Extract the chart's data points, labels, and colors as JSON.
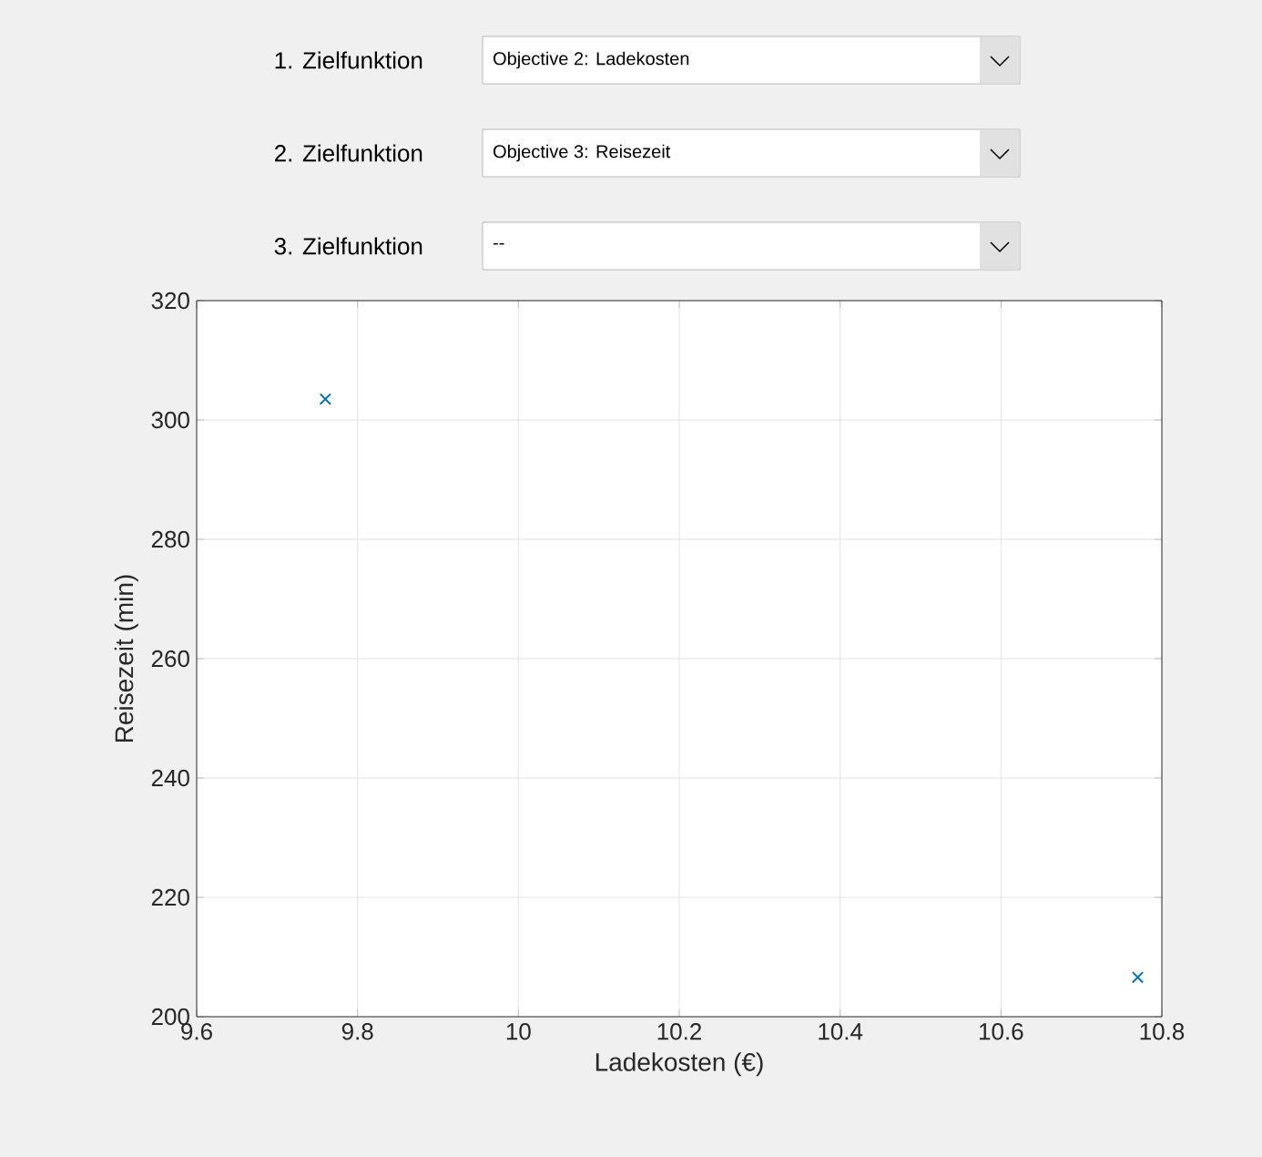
{
  "chart_data": {
    "type": "scatter",
    "xlabel": "Ladekosten (€)",
    "ylabel": "Reisezeit (min)",
    "x": [
      9.76,
      10.77
    ],
    "values": [
      303.5,
      206.6
    ],
    "color": "#0072bd",
    "marker": "cross",
    "grid": true,
    "xlim": [
      9.6,
      10.8
    ],
    "xticks": [
      9.6,
      9.8,
      10,
      10.2,
      10.4,
      10.6,
      10.8
    ],
    "ylim": [
      200,
      320
    ],
    "yticks": [
      200,
      220,
      240,
      260,
      280,
      300,
      320
    ],
    "annotations": [
      "1. Zielfunktion",
      "Objective 2: Ladekosten",
      "2. Zielfunktion",
      "Objective 3: Reisezeit",
      "3. Zielfunktion",
      "--"
    ]
  }
}
